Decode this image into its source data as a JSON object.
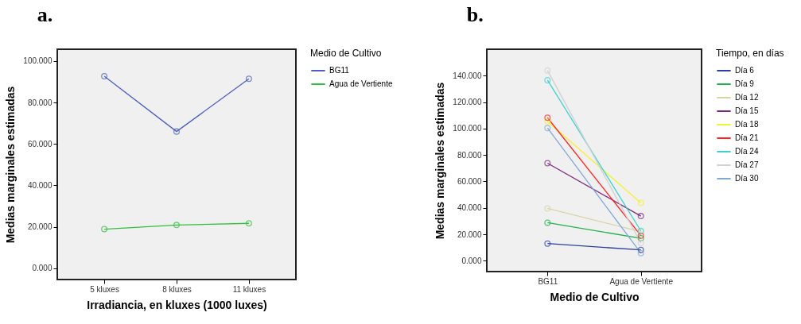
{
  "chart_data": [
    {
      "type": "line",
      "title": "a.",
      "xlabel": "Irradiancia, en kluxes (1000 luxes)",
      "ylabel": "Medias marginales estimadas",
      "legend_title": "Medio de Cultivo",
      "categories": [
        "5 kluxes",
        "8 kluxes",
        "11 kluxes"
      ],
      "series": [
        {
          "name": "BG11",
          "color": "#4a5fc0",
          "values": [
            92.7,
            66.0,
            91.4
          ]
        },
        {
          "name": "Agua de Vertiente",
          "color": "#30c040",
          "values": [
            18.9,
            20.9,
            21.7
          ]
        }
      ],
      "ylim": [
        -5.4,
        105.7
      ],
      "yticks": [
        {
          "value": 0,
          "label": "0.000"
        },
        {
          "value": 20,
          "label": "20.000"
        },
        {
          "value": 40,
          "label": "40.000"
        },
        {
          "value": 60,
          "label": "60.000"
        },
        {
          "value": 80,
          "label": "80.000"
        },
        {
          "value": 100,
          "label": "100.000"
        }
      ],
      "grid": false,
      "legend": "top right",
      "marker": "circle",
      "line_style": "solid"
    },
    {
      "type": "line",
      "title": "b.",
      "xlabel": "Medio de Cultivo",
      "ylabel": "Medias marginales estimadas",
      "legend_title": "Tiempo, en días",
      "categories": [
        "BG11",
        "Agua de Vertiente"
      ],
      "series": [
        {
          "name": "Día 6",
          "color": "#2e3f9e",
          "values": [
            13.0,
            8.2
          ]
        },
        {
          "name": "Día 9",
          "color": "#22b14c",
          "values": [
            28.8,
            17.0
          ]
        },
        {
          "name": "Día 12",
          "color": "#d9d3a6",
          "values": [
            39.6,
            22.0
          ]
        },
        {
          "name": "Día 15",
          "color": "#7b2a7b",
          "values": [
            73.8,
            33.8
          ]
        },
        {
          "name": "Día 18",
          "color": "#f5f030",
          "values": [
            105.4,
            43.8
          ]
        },
        {
          "name": "Día 21",
          "color": "#ff2020",
          "values": [
            108.2,
            19.0
          ]
        },
        {
          "name": "Día 24",
          "color": "#40d0d0",
          "values": [
            136.6,
            22.6
          ]
        },
        {
          "name": "Día 27",
          "color": "#d0d0d0",
          "values": [
            144.0,
            13.4
          ]
        },
        {
          "name": "Día 30",
          "color": "#80a8d8",
          "values": [
            100.4,
            5.8
          ]
        }
      ],
      "ylim": [
        -8.2,
        160
      ],
      "yticks": [
        {
          "value": 0,
          "label": "0.000"
        },
        {
          "value": 20,
          "label": "20.000"
        },
        {
          "value": 40,
          "label": "40.000"
        },
        {
          "value": 60,
          "label": "60.000"
        },
        {
          "value": 80,
          "label": "80.000"
        },
        {
          "value": 100,
          "label": "100.000"
        },
        {
          "value": 120,
          "label": "120.000"
        },
        {
          "value": 140,
          "label": "140.000"
        }
      ],
      "grid": false,
      "legend": "top right",
      "marker": "circle",
      "line_style": "solid"
    }
  ]
}
